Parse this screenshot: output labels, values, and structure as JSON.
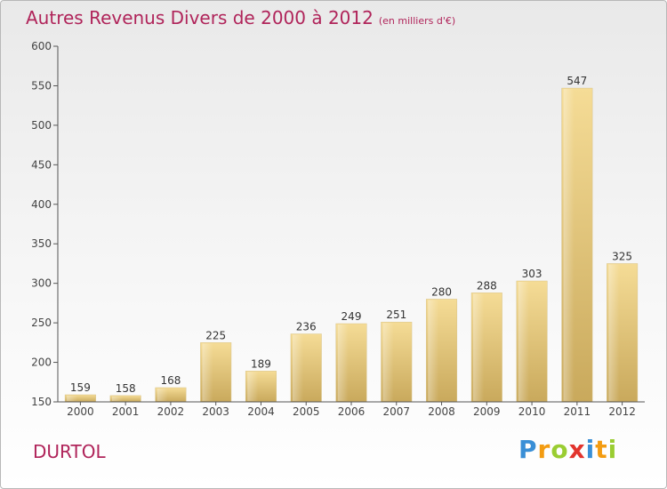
{
  "title": "Autres Revenus Divers de 2000 à 2012",
  "subtitle": "(en milliers d'€)",
  "place": "DURTOL",
  "logo": {
    "letters": [
      "P",
      "r",
      "o",
      "x",
      "i",
      "t",
      "i"
    ],
    "colors": [
      "#3a8fd6",
      "#f39c12",
      "#9acd32",
      "#e2342d",
      "#3a8fd6",
      "#f39c12",
      "#9acd32"
    ]
  },
  "chart_data": {
    "type": "bar",
    "categories": [
      "2000",
      "2001",
      "2002",
      "2003",
      "2004",
      "2005",
      "2006",
      "2007",
      "2008",
      "2009",
      "2010",
      "2011",
      "2012"
    ],
    "values": [
      159,
      158,
      168,
      225,
      189,
      236,
      249,
      251,
      280,
      288,
      303,
      547,
      325
    ],
    "ylim": [
      150,
      600
    ],
    "yticks": [
      150,
      200,
      250,
      300,
      350,
      400,
      450,
      500,
      550,
      600
    ],
    "xlabel": "",
    "ylabel": "",
    "grid": false,
    "bar_color": "#e6c675"
  }
}
